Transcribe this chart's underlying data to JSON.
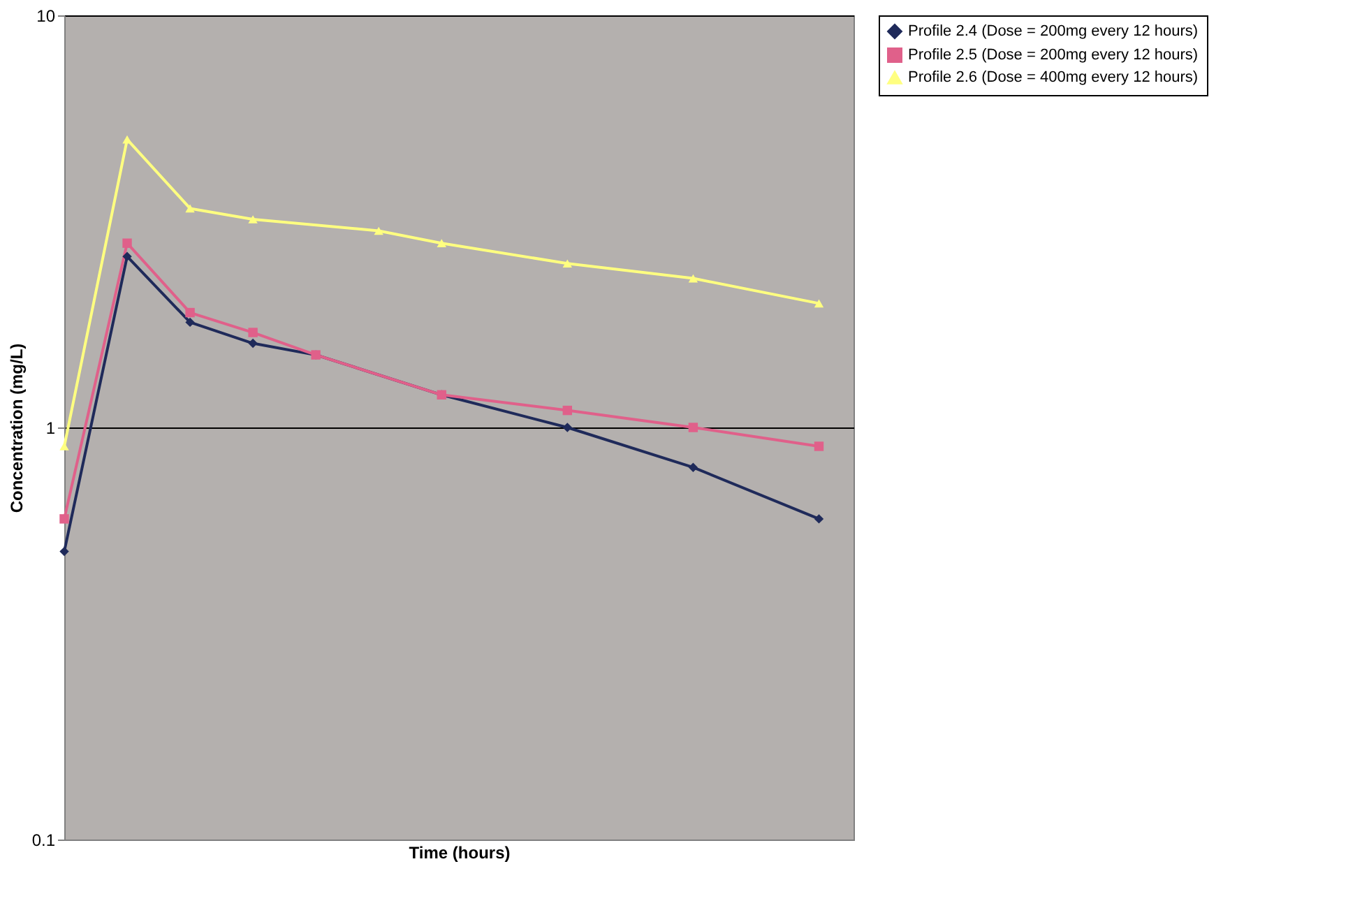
{
  "chart_data": {
    "type": "line",
    "xlabel": "Time (hours)",
    "ylabel": "Concentration (mg/L)",
    "categories": [
      null,
      null,
      null,
      null,
      null,
      null,
      null,
      null,
      null,
      null,
      null,
      null,
      null
    ],
    "ylim": [
      0.1,
      10
    ],
    "yticks": [
      0.1,
      1,
      10
    ],
    "log": "y",
    "grid": "y",
    "legend": "right",
    "tick_labels": "y",
    "series": [
      {
        "name": "Profile 2.4 (Dose = 200mg every 12 hours)",
        "color": "#1f2a5a",
        "marker": "diamond",
        "values": [
          0.5,
          2.6,
          1.8,
          1.6,
          1.5,
          null,
          1.2,
          null,
          1.0,
          null,
          0.8,
          null,
          0.6
        ]
      },
      {
        "name": "Profile 2.5 (Dose = 200mg every 12 hours)",
        "color": "#e0608a",
        "marker": "square",
        "values": [
          0.6,
          2.8,
          1.9,
          1.7,
          1.5,
          null,
          1.2,
          null,
          1.1,
          null,
          1.0,
          null,
          0.9
        ]
      },
      {
        "name": "Profile 2.6 (Dose = 400mg every 12 hours)",
        "color": "#ffff80",
        "marker": "triangle",
        "values": [
          0.9,
          5.0,
          3.4,
          3.2,
          null,
          3.0,
          2.8,
          null,
          2.5,
          null,
          2.3,
          null,
          2.0
        ]
      }
    ]
  }
}
